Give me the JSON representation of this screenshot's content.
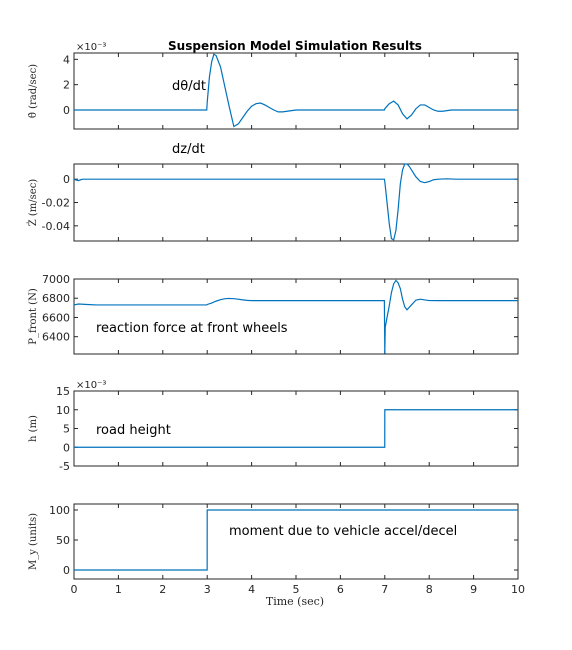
{
  "figure_title": "Suspension Model Simulation Results",
  "x_label": "Time (sec)",
  "chart_data": [
    {
      "type": "line",
      "title": "Suspension Model Simulation Results",
      "ylabel": "θ̇ (rad/sec)",
      "exponent": "×10⁻³",
      "annotation": "dθ/dt",
      "xlim": [
        0,
        10
      ],
      "ylim": [
        -0.0015,
        0.0045
      ],
      "yticks": [
        -0.002,
        0,
        0.002,
        0.004
      ],
      "ytick_labels": [
        "",
        "0",
        "2",
        "4"
      ],
      "x": [
        0,
        2.99,
        3.0,
        3.05,
        3.1,
        3.15,
        3.2,
        3.3,
        3.4,
        3.5,
        3.6,
        3.7,
        3.8,
        3.9,
        4.0,
        4.1,
        4.2,
        4.3,
        4.4,
        4.5,
        4.6,
        4.7,
        4.8,
        4.9,
        5.0,
        5.2,
        5.4,
        6.99,
        7.0,
        7.05,
        7.1,
        7.2,
        7.3,
        7.4,
        7.5,
        7.6,
        7.7,
        7.8,
        7.9,
        8.0,
        8.1,
        8.2,
        8.3,
        8.4,
        8.5,
        8.6,
        8.7,
        8.8,
        9.0,
        10
      ],
      "y": [
        0,
        0,
        0.0006,
        0.0026,
        0.0038,
        0.0044,
        0.0043,
        0.0034,
        0.0018,
        0.0002,
        -0.0013,
        -0.0011,
        -0.0006,
        -0.0001,
        0.0003,
        0.0005,
        0.00055,
        0.0004,
        0.0002,
        0.0,
        -0.00015,
        -0.00015,
        -0.0001,
        -5e-05,
        0.0,
        0.0,
        0.0,
        0.0,
        0.0001,
        0.0003,
        0.0005,
        0.0007,
        0.0004,
        -0.0003,
        -0.0007,
        -0.0004,
        0.0001,
        0.0004,
        0.0004,
        0.0002,
        0.0,
        -0.0001,
        -0.0001,
        -5e-05,
        0.0,
        0.0,
        0.0,
        0.0,
        0.0,
        0.0
      ]
    },
    {
      "type": "line",
      "ylabel": "Ż (m/sec)",
      "exponent": "",
      "annotation": "dz/dt",
      "xlim": [
        0,
        10
      ],
      "ylim": [
        -0.053,
        0.013
      ],
      "yticks": [
        0,
        -0.02,
        -0.04
      ],
      "ytick_labels": [
        "0",
        "-0.02",
        "-0.04"
      ],
      "x": [
        0,
        0.05,
        0.1,
        0.15,
        0.2,
        0.3,
        0.4,
        6.99,
        7.0,
        7.05,
        7.1,
        7.15,
        7.2,
        7.25,
        7.3,
        7.35,
        7.4,
        7.45,
        7.5,
        7.55,
        7.6,
        7.7,
        7.8,
        7.9,
        8.0,
        8.1,
        8.2,
        8.4,
        8.6,
        8.8,
        10
      ],
      "y": [
        0,
        -0.0008,
        -0.0012,
        -0.0005,
        0.0,
        0.0,
        0.0,
        0.0,
        -0.002,
        -0.02,
        -0.038,
        -0.051,
        -0.052,
        -0.044,
        -0.026,
        -0.004,
        0.008,
        0.013,
        0.013,
        0.011,
        0.008,
        0.002,
        -0.002,
        -0.003,
        -0.002,
        -0.0005,
        0.0,
        0.0003,
        0.0,
        0.0,
        0.0
      ]
    },
    {
      "type": "line",
      "ylabel": "P_front (N)",
      "exponent": "",
      "annotation": "reaction force at front wheels",
      "xlim": [
        0,
        10
      ],
      "ylim": [
        6220,
        7000
      ],
      "yticks": [
        6400,
        6600,
        6800,
        7000
      ],
      "ytick_labels": [
        "6400",
        "6600",
        "6800",
        "7000"
      ],
      "x": [
        0,
        0.1,
        0.3,
        0.5,
        2.99,
        3.0,
        3.1,
        3.2,
        3.3,
        3.4,
        3.5,
        3.6,
        3.7,
        3.8,
        3.9,
        4.0,
        4.2,
        4.5,
        6.99,
        7.0,
        7.01,
        7.05,
        7.1,
        7.15,
        7.2,
        7.25,
        7.3,
        7.35,
        7.4,
        7.45,
        7.5,
        7.6,
        7.7,
        7.8,
        7.9,
        8.0,
        8.2,
        8.5,
        10
      ],
      "y": [
        6730,
        6740,
        6735,
        6730,
        6730,
        6735,
        6750,
        6770,
        6785,
        6795,
        6798,
        6795,
        6790,
        6783,
        6778,
        6775,
        6775,
        6775,
        6775,
        6225,
        6500,
        6600,
        6720,
        6860,
        6950,
        6985,
        6960,
        6900,
        6790,
        6710,
        6680,
        6730,
        6780,
        6790,
        6782,
        6776,
        6775,
        6775,
        6775
      ]
    },
    {
      "type": "line",
      "ylabel": "h (m)",
      "exponent": "×10⁻³",
      "annotation": "road height",
      "xlim": [
        0,
        10
      ],
      "ylim": [
        -0.005,
        0.015
      ],
      "yticks": [
        -0.005,
        0,
        0.005,
        0.01,
        0.015
      ],
      "ytick_labels": [
        "-5",
        "0",
        "5",
        "10",
        "15"
      ],
      "x": [
        0,
        6.999,
        7.0,
        10
      ],
      "y": [
        0,
        0,
        0.01,
        0.01
      ]
    },
    {
      "type": "line",
      "ylabel": "M_y (units)",
      "exponent": "",
      "annotation": "moment due to vehicle accel/decel",
      "xlim": [
        0,
        10
      ],
      "ylim": [
        -15,
        110
      ],
      "yticks": [
        0,
        50,
        100
      ],
      "ytick_labels": [
        "0",
        "50",
        "100"
      ],
      "xlabel": "Time (sec)",
      "x": [
        0,
        2.999,
        3.0,
        10
      ],
      "y": [
        0,
        0,
        100,
        100
      ]
    }
  ],
  "x_ticks": [
    0,
    1,
    2,
    3,
    4,
    5,
    6,
    7,
    8,
    9,
    10
  ],
  "x_tick_labels": [
    "0",
    "1",
    "2",
    "3",
    "4",
    "5",
    "6",
    "7",
    "8",
    "9",
    "10"
  ]
}
